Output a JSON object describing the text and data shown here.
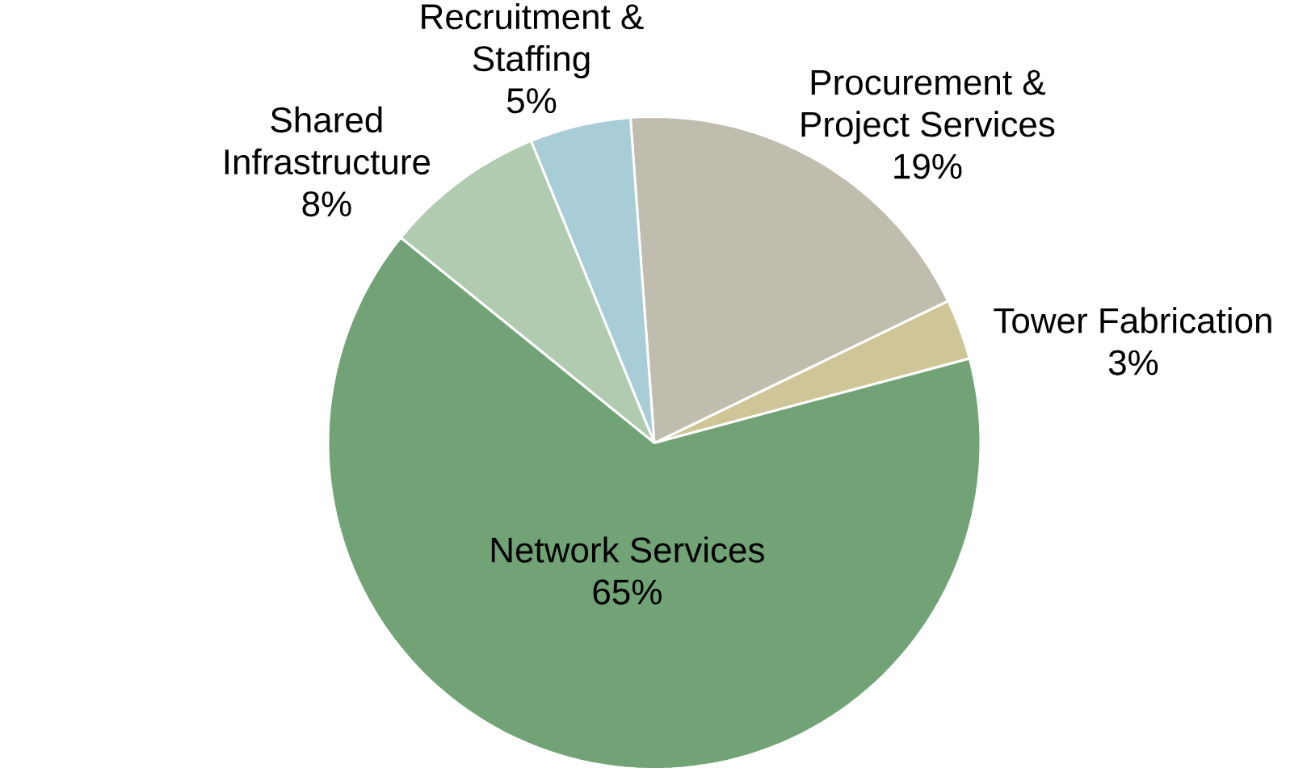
{
  "chart_data": {
    "type": "pie",
    "categories": [
      "Tower Fabrication",
      "Procurement & Project Services",
      "Recruitment & Staffing",
      "Shared Infrastructure",
      "Network Services"
    ],
    "values": [
      3,
      19,
      5,
      8,
      65
    ],
    "value_labels": [
      "3%",
      "19%",
      "5%",
      "8%",
      "65%"
    ],
    "colors": [
      "#cfc697",
      "#c0bdae",
      "#a8cdd6",
      "#b0cbb0",
      "#72a376"
    ]
  }
}
